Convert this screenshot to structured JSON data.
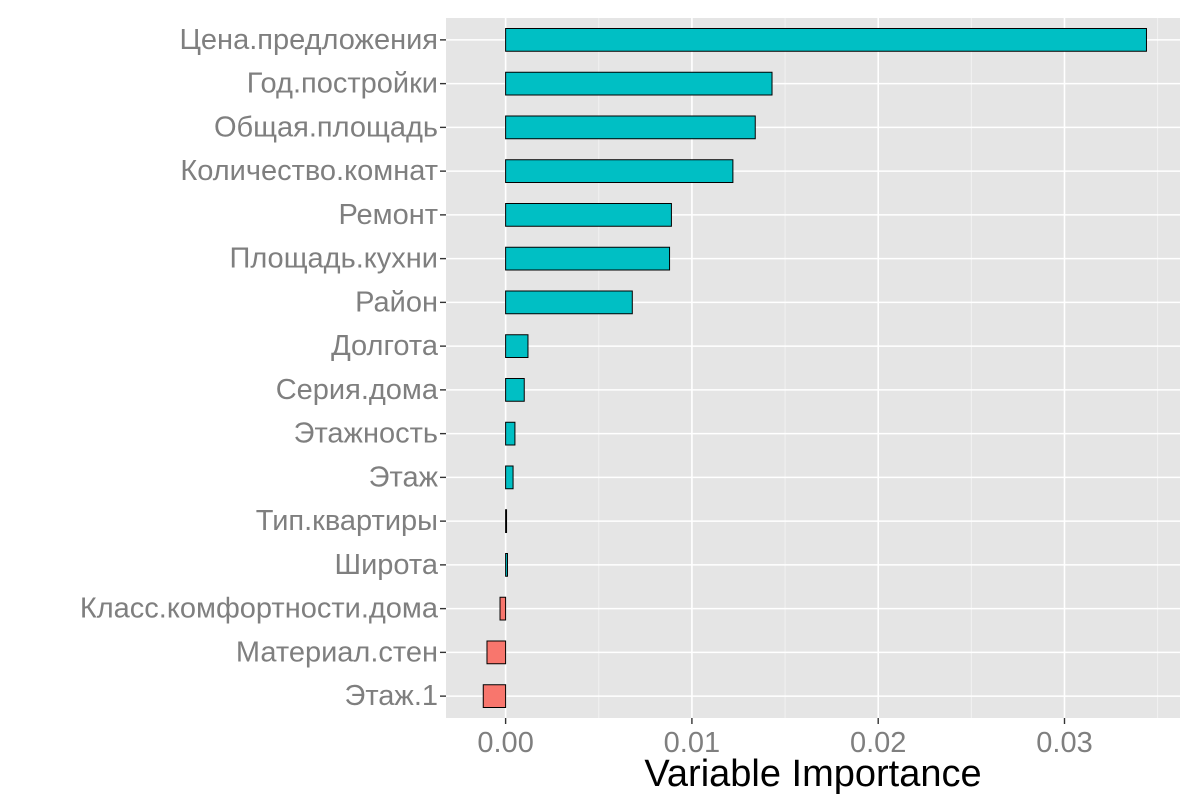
{
  "chart_data": {
    "type": "bar",
    "orientation": "horizontal",
    "title": "",
    "xlabel": "Variable Importance",
    "ylabel": "",
    "categories": [
      "Цена.предложения",
      "Год.постройки",
      "Общая.площадь",
      "Количество.комнат",
      "Ремонт",
      "Площадь.кухни",
      "Район",
      "Долгота",
      "Серия.дома",
      "Этажность",
      "Этаж",
      "Тип.квартиры",
      "Широта",
      "Класс.комфортности.дома",
      "Материал.стен",
      "Этаж.1"
    ],
    "values": [
      0.0344,
      0.0143,
      0.0134,
      0.0122,
      0.0089,
      0.0088,
      0.0068,
      0.0012,
      0.001,
      0.0005,
      0.0004,
      5e-05,
      0.0001,
      -0.0003,
      -0.001,
      -0.0012
    ],
    "xlim": [
      -0.0032,
      0.0362
    ],
    "x_ticks": [
      0,
      0.01,
      0.02,
      0.03
    ],
    "x_tick_labels": [
      "0.00",
      "0.01",
      "0.02",
      "0.03"
    ],
    "grid": true,
    "legend": "none",
    "colors": {
      "positive": "#00BFC4",
      "negative": "#F8766D",
      "panel_background": "#E5E5E5",
      "grid_major": "#FFFFFF",
      "grid_minor": "#F2F2F2",
      "bar_outline": "#000000",
      "tick_label": "#7F7F7F"
    }
  }
}
